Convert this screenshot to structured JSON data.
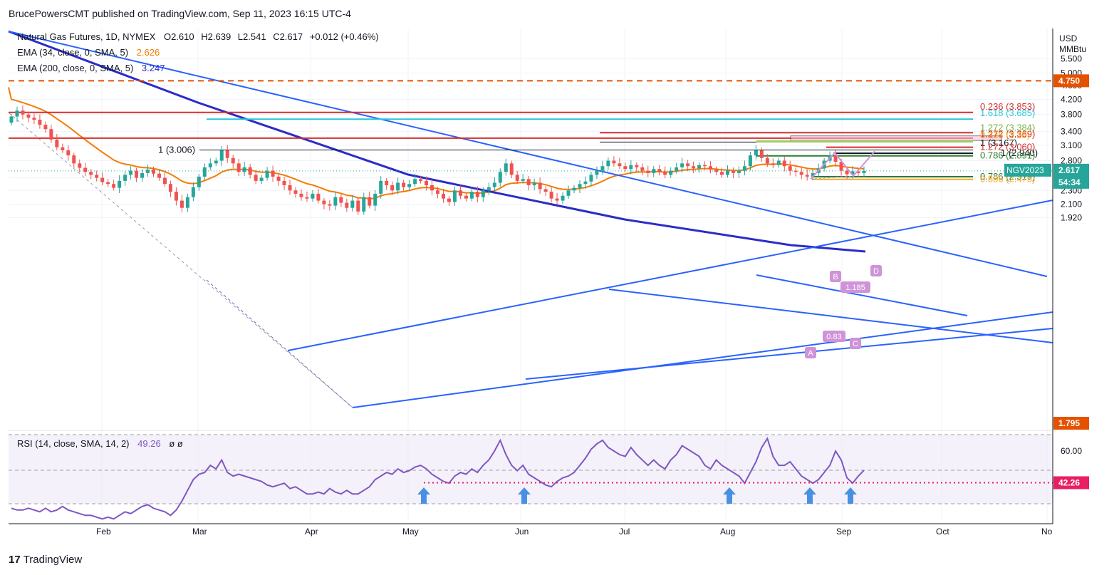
{
  "header": {
    "publisher": "BrucePowersCMT published on TradingView.com, Sep 11, 2023 16:15 UTC-4"
  },
  "legend": {
    "instrument": "Natural Gas Futures, 1D, NYMEX",
    "ohlc": {
      "o": "O2.610",
      "h": "H2.639",
      "l": "L2.541",
      "c": "C2.617",
      "chg": "+0.012 (+0.46%)"
    },
    "ema34": {
      "label": "EMA (34, close, 0, SMA, 5)",
      "value": "2.626",
      "color": "#f57c00"
    },
    "ema200": {
      "label": "EMA (200, close, 0, SMA, 5)",
      "value": "3.247",
      "color": "#2b2cc7"
    },
    "rsi": {
      "label": "RSI (14, close, SMA, 14, 2)",
      "value": "49.26",
      "extra": "ø  ø",
      "color": "#7e57c2"
    }
  },
  "axis": {
    "unit_line1": "USD",
    "unit_line2": "MMBtu",
    "price_ticks": [
      "5.500",
      "5.000",
      "4.600",
      "4.200",
      "3.800",
      "3.400",
      "3.100",
      "2.800",
      "2.500",
      "2.300",
      "2.100",
      "1.920"
    ],
    "rsi_ticks": [
      "60.00"
    ],
    "months": [
      "Feb",
      "Mar",
      "Apr",
      "May",
      "Jun",
      "Jul",
      "Aug",
      "Sep",
      "Oct",
      "No"
    ]
  },
  "price_labels": {
    "level_4750": {
      "text": "4.750",
      "color": "#e65100"
    },
    "level_1795": {
      "text": "1.795",
      "color": "#e65100"
    },
    "ticker": {
      "text": "NGV2023",
      "color": "#26a69a"
    },
    "last": {
      "text": "2.617",
      "color": "#26a69a"
    },
    "countdown": {
      "text": "54:34",
      "color": "#26a69a"
    },
    "rsi_level": {
      "text": "42.26",
      "color": "#e91e63"
    }
  },
  "annotations": {
    "fib_236": {
      "text": "0.236 (3.853)",
      "color": "#d32f2f"
    },
    "fib_1618": {
      "text": "1.618 (3.685)",
      "color": "#26c6da"
    },
    "fib_1272a": {
      "text": "1.272 (3.369)",
      "color": "#d32f2f"
    },
    "fib_1272b": {
      "text": "1.272 (3.384)",
      "color": "#7cb342"
    },
    "fib_1a": {
      "text": "1 (3.167)",
      "color": "#131722"
    },
    "fib_236b": {
      "text": "0.236 (3.28)",
      "color": "#f9a825"
    },
    "fib_1272c": {
      "text": "1.272 (3.060)",
      "color": "#d32f2f"
    },
    "fib_1b": {
      "text": "1 (2.940)",
      "color": "#131722"
    },
    "fib_786a": {
      "text": "0.786 (2.891)",
      "color": "#2e7d32"
    },
    "fib_786b": {
      "text": "0.786 (2.519)",
      "color": "#2e7d32"
    },
    "fib_886": {
      "text": "0.886 (2.475)",
      "color": "#f9a825"
    },
    "fib_left": {
      "text": "1 (3.006)",
      "color": "#131722"
    },
    "xabcd_b": {
      "text": "B"
    },
    "xabcd_a": {
      "text": "A"
    },
    "xabcd_c": {
      "text": "C"
    },
    "xabcd_d": {
      "text": "D"
    },
    "ratio_bc": {
      "text": "1.185"
    },
    "ratio_ab": {
      "text": "0.83"
    }
  },
  "colors": {
    "up": "#26a69a",
    "down": "#ef5350",
    "trend": "#2962ff",
    "ema34": "#f57c00",
    "ema200": "#2b2cc7",
    "rsi": "#7e57c2",
    "pattern": "#ce93d8",
    "arrow": "#4a90e2"
  },
  "chart_data": {
    "type": "candlestick",
    "x_axis": "date (2023)",
    "y_axis": "price USD/MMBtu",
    "close": [
      3.75,
      3.9,
      3.8,
      3.72,
      3.67,
      3.55,
      3.45,
      3.22,
      3.06,
      3.0,
      2.9,
      2.75,
      2.67,
      2.6,
      2.55,
      2.5,
      2.43,
      2.4,
      2.34,
      2.45,
      2.55,
      2.62,
      2.5,
      2.58,
      2.64,
      2.57,
      2.5,
      2.4,
      2.28,
      2.15,
      2.05,
      2.2,
      2.35,
      2.52,
      2.68,
      2.75,
      2.8,
      3.0,
      2.85,
      2.75,
      2.6,
      2.68,
      2.55,
      2.45,
      2.5,
      2.62,
      2.52,
      2.45,
      2.38,
      2.3,
      2.25,
      2.2,
      2.18,
      2.25,
      2.15,
      2.1,
      2.08,
      2.2,
      2.12,
      2.05,
      2.15,
      2.0,
      2.2,
      2.08,
      2.25,
      2.45,
      2.38,
      2.3,
      2.42,
      2.35,
      2.4,
      2.48,
      2.45,
      2.38,
      2.3,
      2.25,
      2.18,
      2.13,
      2.3,
      2.22,
      2.18,
      2.28,
      2.2,
      2.3,
      2.35,
      2.42,
      2.6,
      2.75,
      2.55,
      2.45,
      2.48,
      2.38,
      2.42,
      2.32,
      2.28,
      2.18,
      2.15,
      2.22,
      2.3,
      2.34,
      2.4,
      2.44,
      2.55,
      2.62,
      2.7,
      2.8,
      2.75,
      2.7,
      2.65,
      2.72,
      2.68,
      2.62,
      2.58,
      2.65,
      2.6,
      2.55,
      2.62,
      2.68,
      2.75,
      2.7,
      2.66,
      2.72,
      2.7,
      2.64,
      2.6,
      2.55,
      2.62,
      2.58,
      2.62,
      2.7,
      2.9,
      3.0,
      2.85,
      2.75,
      2.72,
      2.8,
      2.7,
      2.62,
      2.6,
      2.55,
      2.52,
      2.58,
      2.66,
      2.8,
      2.9,
      2.78,
      2.62,
      2.56,
      2.61,
      2.58,
      2.617
    ],
    "series": [
      {
        "name": "EMA (34, close, 0, SMA, 5)",
        "last": 2.626
      },
      {
        "name": "EMA (200, close, 0, SMA, 5)",
        "last": 3.247
      },
      {
        "name": "RSI (14, close, SMA, 14, 2)",
        "last": 49.26
      }
    ],
    "horizontal_levels": [
      4.75,
      3.853,
      3.685,
      3.369,
      3.384,
      3.167,
      3.28,
      3.06,
      2.94,
      2.891,
      2.519,
      2.475,
      3.006,
      1.795
    ],
    "ylim": [
      1.9,
      6.0
    ],
    "rsi_level": 42.26
  }
}
